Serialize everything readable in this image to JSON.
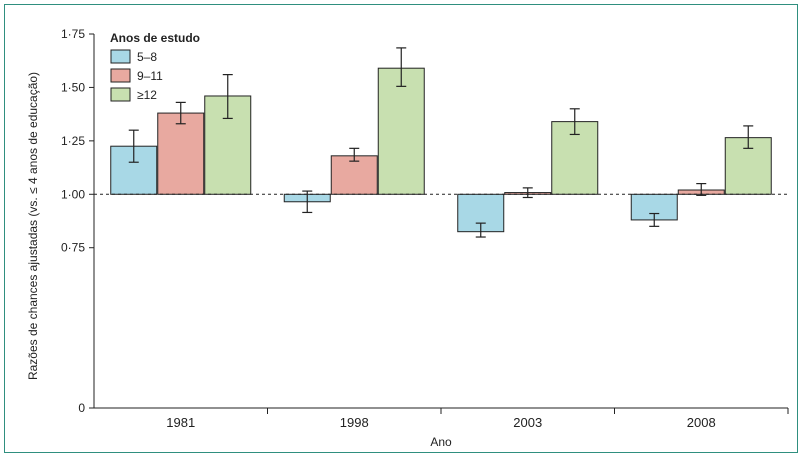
{
  "chart_data": {
    "type": "bar",
    "xlabel": "Ano",
    "ylabel": "Razões de chances ajustadas (vs. ≤ 4 anos de educação)",
    "categories": [
      "1981",
      "1998",
      "2003",
      "2008"
    ],
    "ylim": [
      0,
      1.75
    ],
    "yticks": [
      {
        "value": 0,
        "label": "0"
      },
      {
        "value": 0.75,
        "label": "0·75"
      },
      {
        "value": 1.0,
        "label": "1·00"
      },
      {
        "value": 1.25,
        "label": "1·25"
      },
      {
        "value": 1.5,
        "label": "1·50"
      },
      {
        "value": 1.75,
        "label": "1·75"
      }
    ],
    "baseline": 1.0,
    "legend": {
      "title": "Anos de estudo",
      "position": "top-left"
    },
    "series": [
      {
        "name": "5–8",
        "color": "#a8d8e6",
        "values": [
          1.225,
          0.965,
          0.825,
          0.88
        ],
        "ci_low": [
          1.15,
          0.915,
          0.8,
          0.85
        ],
        "ci_high": [
          1.3,
          1.015,
          0.865,
          0.91
        ]
      },
      {
        "name": "9–11",
        "color": "#e8a9a0",
        "values": [
          1.38,
          1.18,
          1.008,
          1.02
        ],
        "ci_low": [
          1.33,
          1.155,
          0.985,
          0.995
        ],
        "ci_high": [
          1.43,
          1.215,
          1.03,
          1.05
        ]
      },
      {
        "name": "≥12",
        "color": "#c8e0b0",
        "values": [
          1.46,
          1.59,
          1.34,
          1.265
        ],
        "ci_low": [
          1.355,
          1.505,
          1.28,
          1.215
        ],
        "ci_high": [
          1.56,
          1.685,
          1.4,
          1.32
        ]
      }
    ]
  }
}
